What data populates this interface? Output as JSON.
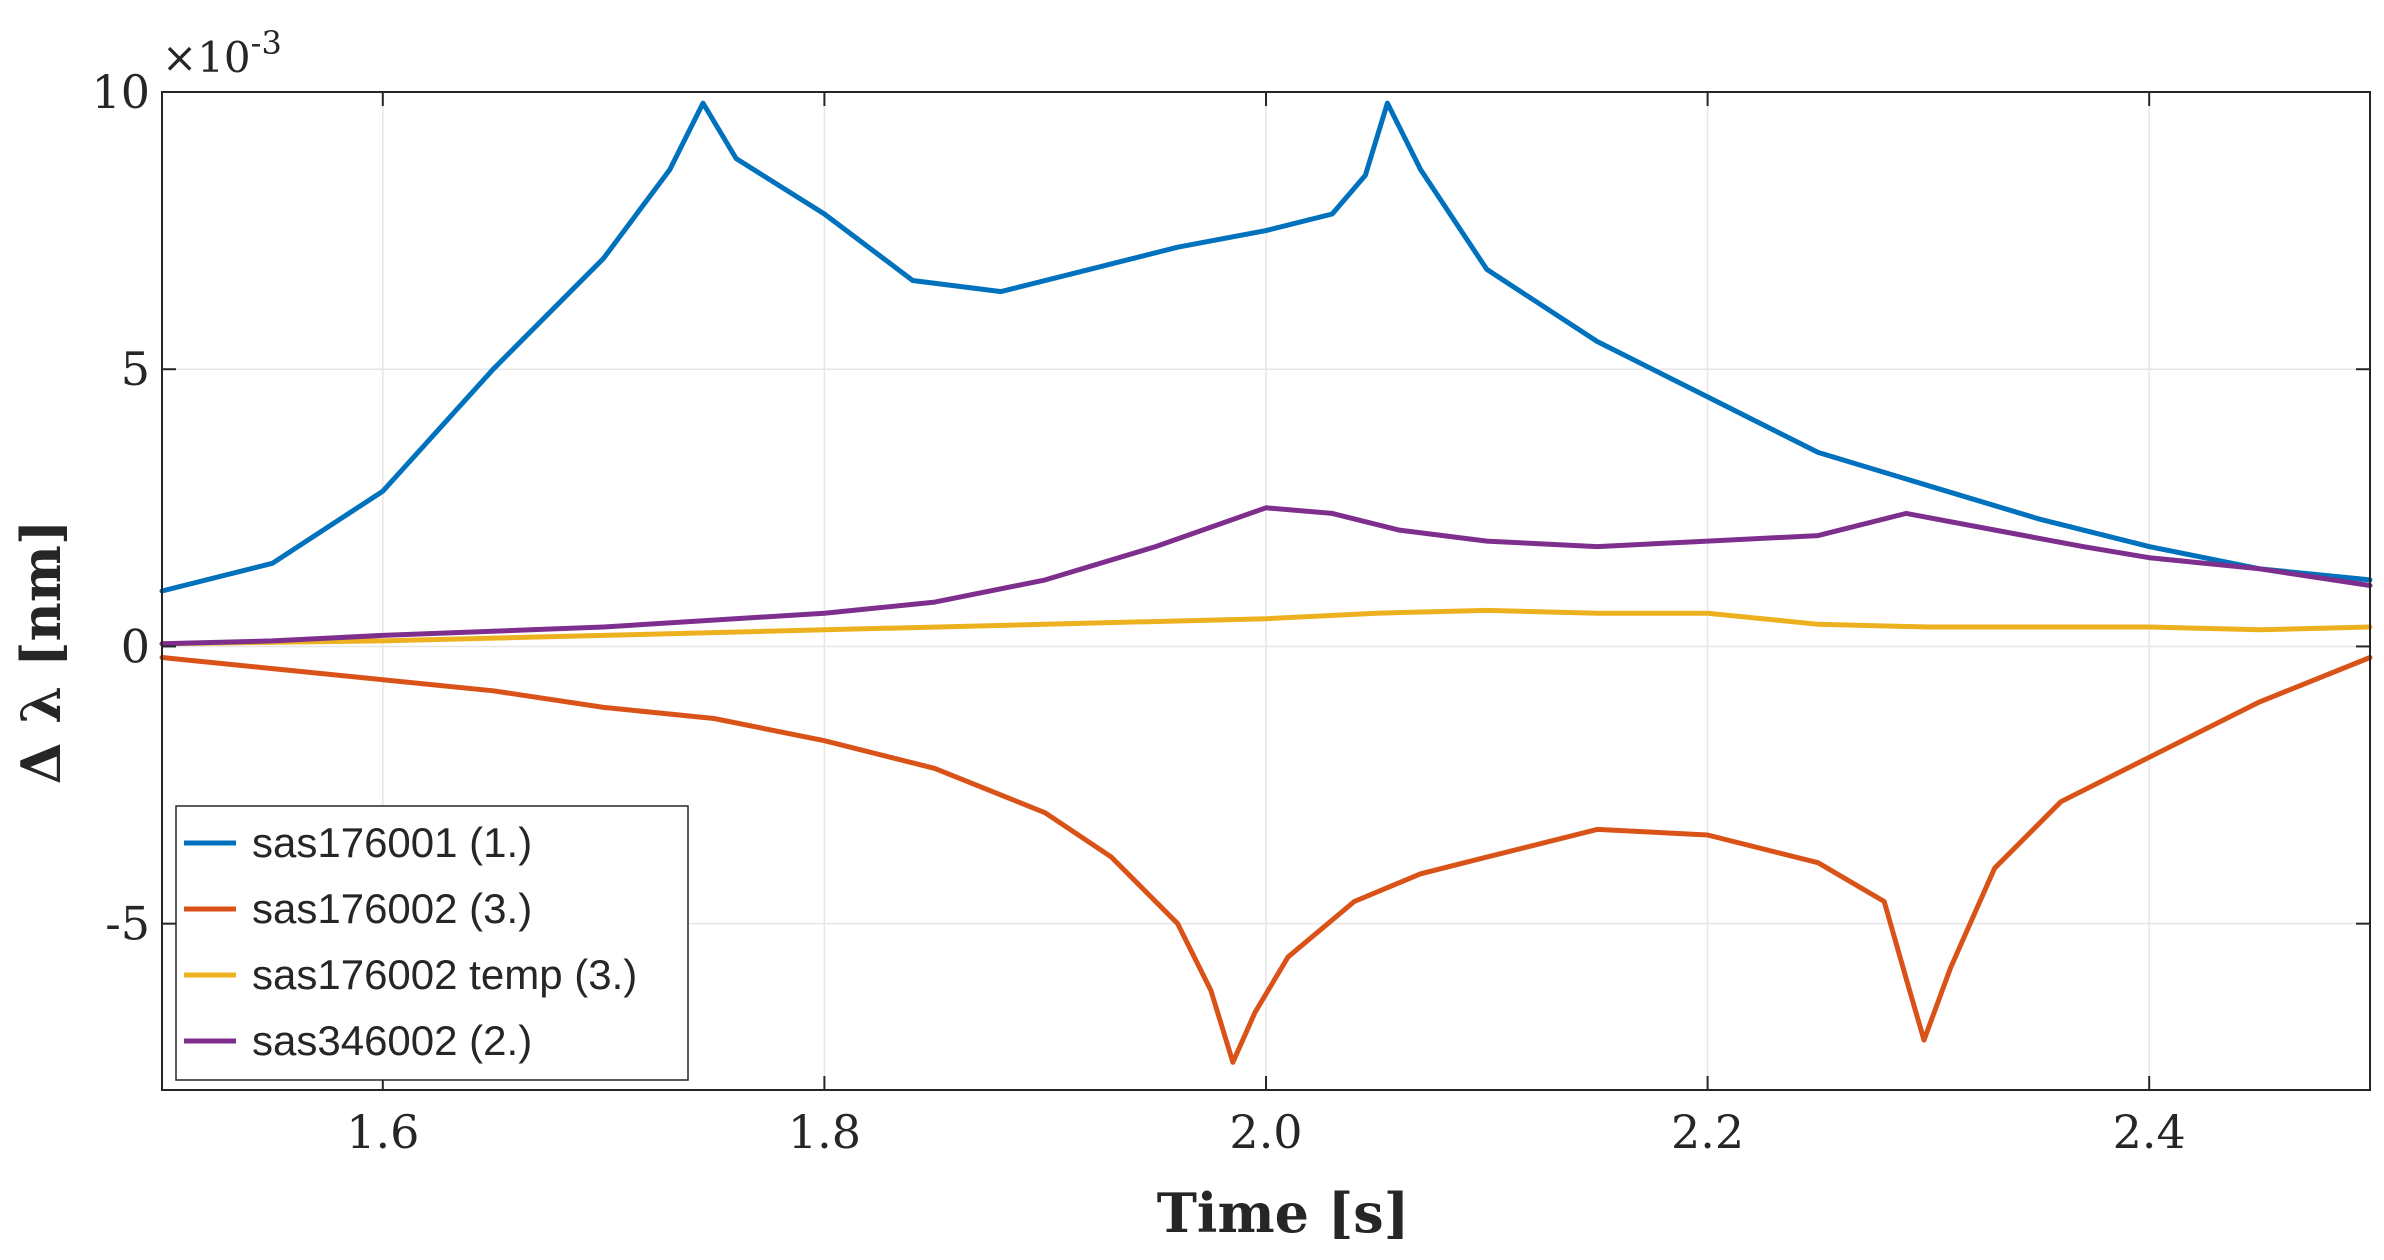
{
  "chart_data": {
    "type": "line",
    "xlabel": "Time [s]",
    "ylabel": "Δ λ [nm]",
    "xlim": [
      1.5,
      2.5
    ],
    "ylim": [
      -8,
      10
    ],
    "xticks": [
      1.6,
      1.8,
      2.0,
      2.2,
      2.4
    ],
    "xtick_labels": [
      "1.6",
      "1.8",
      "2.0",
      "2.2",
      "2.4"
    ],
    "yticks": [
      -5,
      0,
      5,
      10
    ],
    "ytick_labels": [
      "-5",
      "0",
      "5",
      "10"
    ],
    "y_exponent_label": "×10",
    "y_exponent_power": "-3",
    "grid": true,
    "legend_position": "bottom-left",
    "series": [
      {
        "name": "sas176001 (1.)",
        "color": "#0072BD",
        "points": [
          [
            1.5,
            1.0
          ],
          [
            1.55,
            1.5
          ],
          [
            1.6,
            2.8
          ],
          [
            1.65,
            5.0
          ],
          [
            1.7,
            7.0
          ],
          [
            1.73,
            8.6
          ],
          [
            1.745,
            9.8
          ],
          [
            1.76,
            8.8
          ],
          [
            1.8,
            7.8
          ],
          [
            1.84,
            6.6
          ],
          [
            1.88,
            6.4
          ],
          [
            1.92,
            6.8
          ],
          [
            1.96,
            7.2
          ],
          [
            2.0,
            7.5
          ],
          [
            2.03,
            7.8
          ],
          [
            2.045,
            8.5
          ],
          [
            2.055,
            9.8
          ],
          [
            2.07,
            8.6
          ],
          [
            2.1,
            6.8
          ],
          [
            2.15,
            5.5
          ],
          [
            2.2,
            4.5
          ],
          [
            2.25,
            3.5
          ],
          [
            2.3,
            2.9
          ],
          [
            2.35,
            2.3
          ],
          [
            2.4,
            1.8
          ],
          [
            2.45,
            1.4
          ],
          [
            2.5,
            1.2
          ]
        ]
      },
      {
        "name": "sas176002 (3.)",
        "color": "#D95319",
        "points": [
          [
            1.5,
            -0.2
          ],
          [
            1.55,
            -0.4
          ],
          [
            1.6,
            -0.6
          ],
          [
            1.65,
            -0.8
          ],
          [
            1.7,
            -1.1
          ],
          [
            1.75,
            -1.3
          ],
          [
            1.8,
            -1.7
          ],
          [
            1.85,
            -2.2
          ],
          [
            1.9,
            -3.0
          ],
          [
            1.93,
            -3.8
          ],
          [
            1.96,
            -5.0
          ],
          [
            1.975,
            -6.2
          ],
          [
            1.985,
            -7.5
          ],
          [
            1.995,
            -6.6
          ],
          [
            2.01,
            -5.6
          ],
          [
            2.04,
            -4.6
          ],
          [
            2.07,
            -4.1
          ],
          [
            2.1,
            -3.8
          ],
          [
            2.15,
            -3.3
          ],
          [
            2.2,
            -3.4
          ],
          [
            2.25,
            -3.9
          ],
          [
            2.28,
            -4.6
          ],
          [
            2.29,
            -6.0
          ],
          [
            2.298,
            -7.1
          ],
          [
            2.31,
            -5.8
          ],
          [
            2.33,
            -4.0
          ],
          [
            2.36,
            -2.8
          ],
          [
            2.4,
            -2.0
          ],
          [
            2.45,
            -1.0
          ],
          [
            2.5,
            -0.2
          ]
        ]
      },
      {
        "name": "sas176002 temp (3.)",
        "color": "#EDB120",
        "points": [
          [
            1.5,
            0.05
          ],
          [
            1.6,
            0.1
          ],
          [
            1.7,
            0.2
          ],
          [
            1.8,
            0.3
          ],
          [
            1.9,
            0.4
          ],
          [
            2.0,
            0.5
          ],
          [
            2.05,
            0.6
          ],
          [
            2.1,
            0.65
          ],
          [
            2.15,
            0.6
          ],
          [
            2.2,
            0.6
          ],
          [
            2.25,
            0.4
          ],
          [
            2.3,
            0.35
          ],
          [
            2.35,
            0.35
          ],
          [
            2.4,
            0.35
          ],
          [
            2.45,
            0.3
          ],
          [
            2.5,
            0.35
          ]
        ]
      },
      {
        "name": "sas346002 (2.)",
        "color": "#7E2F8E",
        "points": [
          [
            1.5,
            0.05
          ],
          [
            1.55,
            0.1
          ],
          [
            1.6,
            0.2
          ],
          [
            1.7,
            0.35
          ],
          [
            1.8,
            0.6
          ],
          [
            1.85,
            0.8
          ],
          [
            1.9,
            1.2
          ],
          [
            1.95,
            1.8
          ],
          [
            2.0,
            2.5
          ],
          [
            2.03,
            2.4
          ],
          [
            2.06,
            2.1
          ],
          [
            2.1,
            1.9
          ],
          [
            2.15,
            1.8
          ],
          [
            2.2,
            1.9
          ],
          [
            2.25,
            2.0
          ],
          [
            2.29,
            2.4
          ],
          [
            2.33,
            2.1
          ],
          [
            2.37,
            1.8
          ],
          [
            2.4,
            1.6
          ],
          [
            2.45,
            1.4
          ],
          [
            2.5,
            1.1
          ]
        ]
      }
    ]
  }
}
